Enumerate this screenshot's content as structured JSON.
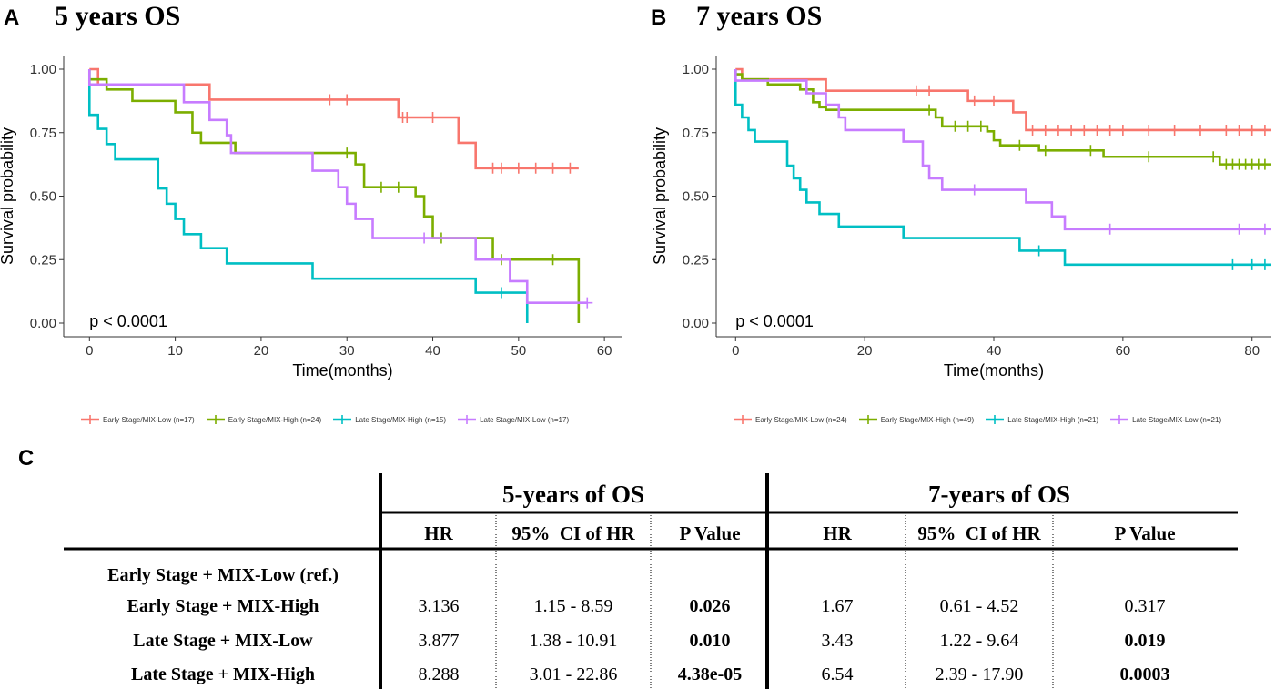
{
  "panels": {
    "a": {
      "letter": "A",
      "title": "5 years OS"
    },
    "b": {
      "letter": "B",
      "title": "7 years OS"
    },
    "c": {
      "letter": "C"
    }
  },
  "colors": {
    "early_low": "#F8766D",
    "early_high": "#7CAE00",
    "late_high": "#00BFC4",
    "late_low": "#C77CFF",
    "axis": "#333333",
    "text": "#000000"
  },
  "chart_data": [
    {
      "type": "line",
      "title": "5 years OS",
      "xlabel": "Time(months)",
      "ylabel": "Survival probability",
      "xlim": [
        -3,
        62
      ],
      "ylim": [
        0,
        1
      ],
      "xticks": [
        0,
        10,
        20,
        30,
        40,
        50,
        60
      ],
      "yticks": [
        "0.00",
        "0.25",
        "0.50",
        "0.75",
        "1.00"
      ],
      "annotation": "p < 0.0001",
      "legend_position": "bottom",
      "series": [
        {
          "name": "Early Stage/MIX-Low (n=17)",
          "color_key": "early_low",
          "steps": [
            [
              0,
              1
            ],
            [
              1,
              0.94
            ],
            [
              14,
              0.88
            ],
            [
              36,
              0.81
            ],
            [
              43,
              0.71
            ],
            [
              45,
              0.61
            ],
            [
              57,
              0.61
            ]
          ],
          "censors": [
            [
              28,
              0.88
            ],
            [
              30,
              0.88
            ],
            [
              36.5,
              0.81
            ],
            [
              37,
              0.81
            ],
            [
              40,
              0.81
            ],
            [
              47,
              0.61
            ],
            [
              48,
              0.61
            ],
            [
              50,
              0.61
            ],
            [
              52,
              0.61
            ],
            [
              54,
              0.61
            ],
            [
              56,
              0.61
            ]
          ]
        },
        {
          "name": "Early Stage/MIX-High (n=24)",
          "color_key": "early_high",
          "steps": [
            [
              0,
              0.96
            ],
            [
              2,
              0.92
            ],
            [
              5,
              0.875
            ],
            [
              10,
              0.83
            ],
            [
              12,
              0.75
            ],
            [
              13,
              0.71
            ],
            [
              17,
              0.67
            ],
            [
              31,
              0.625
            ],
            [
              32,
              0.535
            ],
            [
              38,
              0.5
            ],
            [
              39,
              0.42
            ],
            [
              40,
              0.335
            ],
            [
              47,
              0.25
            ],
            [
              57,
              0.0
            ]
          ],
          "censors": [
            [
              30,
              0.67
            ],
            [
              34,
              0.535
            ],
            [
              36,
              0.535
            ],
            [
              41,
              0.335
            ],
            [
              48,
              0.25
            ],
            [
              54,
              0.25
            ]
          ]
        },
        {
          "name": "Late Stage/MIX-High (n=15)",
          "color_key": "late_high",
          "steps": [
            [
              0,
              0.82
            ],
            [
              1,
              0.765
            ],
            [
              2,
              0.705
            ],
            [
              3,
              0.645
            ],
            [
              8,
              0.53
            ],
            [
              9,
              0.47
            ],
            [
              10,
              0.41
            ],
            [
              11,
              0.35
            ],
            [
              13,
              0.295
            ],
            [
              16,
              0.235
            ],
            [
              26,
              0.175
            ],
            [
              45,
              0.12
            ],
            [
              51,
              0.0
            ]
          ],
          "censors": [
            [
              48,
              0.12
            ]
          ]
        },
        {
          "name": "Late Stage/MIX-Low (n=17)",
          "color_key": "late_low",
          "steps": [
            [
              0,
              0.94
            ],
            [
              11,
              0.87
            ],
            [
              14,
              0.8
            ],
            [
              16,
              0.74
            ],
            [
              16.5,
              0.67
            ],
            [
              26,
              0.6
            ],
            [
              29,
              0.535
            ],
            [
              30,
              0.47
            ],
            [
              31,
              0.41
            ],
            [
              33,
              0.335
            ],
            [
              45,
              0.25
            ],
            [
              49,
              0.165
            ],
            [
              51,
              0.08
            ],
            [
              58,
              0.08
            ]
          ],
          "censors": [
            [
              39,
              0.335
            ],
            [
              58,
              0.08
            ]
          ]
        }
      ]
    },
    {
      "type": "line",
      "title": "7 years OS",
      "xlabel": "Time(months)",
      "ylabel": "Survival probability",
      "xlim": [
        -3,
        83
      ],
      "ylim": [
        0,
        1
      ],
      "xticks": [
        0,
        20,
        40,
        60,
        80
      ],
      "yticks": [
        "0.00",
        "0.25",
        "0.50",
        "0.75",
        "1.00"
      ],
      "annotation": "p < 0.0001",
      "legend_position": "bottom",
      "series": [
        {
          "name": "Early Stage/MIX-Low (n=24)",
          "color_key": "early_low",
          "steps": [
            [
              0,
              1
            ],
            [
              1,
              0.96
            ],
            [
              14,
              0.915
            ],
            [
              36,
              0.875
            ],
            [
              43,
              0.83
            ],
            [
              45,
              0.76
            ],
            [
              83,
              0.76
            ]
          ],
          "censors": [
            [
              37,
              0.875
            ],
            [
              40,
              0.875
            ],
            [
              28,
              0.915
            ],
            [
              30,
              0.915
            ],
            [
              46,
              0.76
            ],
            [
              48,
              0.76
            ],
            [
              50,
              0.76
            ],
            [
              52,
              0.76
            ],
            [
              54,
              0.76
            ],
            [
              56,
              0.76
            ],
            [
              58,
              0.76
            ],
            [
              60,
              0.76
            ],
            [
              64,
              0.76
            ],
            [
              68,
              0.76
            ],
            [
              72,
              0.76
            ],
            [
              76,
              0.76
            ],
            [
              78,
              0.76
            ],
            [
              80,
              0.76
            ],
            [
              82,
              0.76
            ]
          ]
        },
        {
          "name": "Early Stage/MIX-High (n=49)",
          "color_key": "early_high",
          "steps": [
            [
              0,
              0.98
            ],
            [
              1,
              0.96
            ],
            [
              5,
              0.94
            ],
            [
              10,
              0.92
            ],
            [
              12,
              0.87
            ],
            [
              13,
              0.85
            ],
            [
              14,
              0.84
            ],
            [
              31,
              0.81
            ],
            [
              32,
              0.775
            ],
            [
              39,
              0.755
            ],
            [
              40,
              0.72
            ],
            [
              41,
              0.7
            ],
            [
              47,
              0.68
            ],
            [
              57,
              0.655
            ],
            [
              75,
              0.625
            ],
            [
              83,
              0.625
            ]
          ],
          "censors": [
            [
              30,
              0.84
            ],
            [
              34,
              0.775
            ],
            [
              36,
              0.775
            ],
            [
              38,
              0.775
            ],
            [
              44,
              0.7
            ],
            [
              48,
              0.68
            ],
            [
              55,
              0.68
            ],
            [
              64,
              0.655
            ],
            [
              74,
              0.655
            ],
            [
              76,
              0.625
            ],
            [
              77,
              0.625
            ],
            [
              78,
              0.625
            ],
            [
              79,
              0.625
            ],
            [
              80,
              0.625
            ],
            [
              81,
              0.625
            ],
            [
              82,
              0.625
            ]
          ]
        },
        {
          "name": "Late Stage/MIX-High (n=21)",
          "color_key": "late_high",
          "steps": [
            [
              0,
              0.86
            ],
            [
              1,
              0.81
            ],
            [
              2,
              0.76
            ],
            [
              3,
              0.715
            ],
            [
              8,
              0.62
            ],
            [
              9,
              0.57
            ],
            [
              10,
              0.525
            ],
            [
              11,
              0.475
            ],
            [
              13,
              0.43
            ],
            [
              16,
              0.38
            ],
            [
              26,
              0.335
            ],
            [
              44,
              0.285
            ],
            [
              51,
              0.23
            ],
            [
              83,
              0.23
            ]
          ],
          "censors": [
            [
              47,
              0.285
            ],
            [
              77,
              0.23
            ],
            [
              80,
              0.23
            ],
            [
              82,
              0.23
            ]
          ]
        },
        {
          "name": "Late Stage/MIX-Low (n=21)",
          "color_key": "late_low",
          "steps": [
            [
              0,
              0.955
            ],
            [
              11,
              0.905
            ],
            [
              14,
              0.86
            ],
            [
              16,
              0.81
            ],
            [
              17,
              0.76
            ],
            [
              26,
              0.715
            ],
            [
              29,
              0.62
            ],
            [
              30,
              0.57
            ],
            [
              32,
              0.525
            ],
            [
              45,
              0.475
            ],
            [
              49,
              0.42
            ],
            [
              51,
              0.37
            ],
            [
              83,
              0.37
            ]
          ],
          "censors": [
            [
              37,
              0.525
            ],
            [
              58,
              0.37
            ],
            [
              78,
              0.37
            ],
            [
              82,
              0.37
            ]
          ]
        }
      ]
    }
  ],
  "table": {
    "group_5y": "5-years of OS",
    "group_7y": "7-years of OS",
    "col_hr": "HR",
    "col_ci": "95%  CI of HR",
    "col_p": "P Value",
    "rows": [
      {
        "label": "Early Stage + MIX-Low (ref.)",
        "hr5": "",
        "ci5": "",
        "p5": "",
        "hr7": "",
        "ci7": "",
        "p7": "",
        "p5_bold": false,
        "p7_bold": false
      },
      {
        "label": "Early Stage + MIX-High",
        "hr5": "3.136",
        "ci5": "1.15 - 8.59",
        "p5": "0.026",
        "hr7": "1.67",
        "ci7": "0.61 - 4.52",
        "p7": "0.317",
        "p5_bold": true,
        "p7_bold": false
      },
      {
        "label": "Late Stage + MIX-Low",
        "hr5": "3.877",
        "ci5": "1.38 - 10.91",
        "p5": "0.010",
        "hr7": "3.43",
        "ci7": "1.22 - 9.64",
        "p7": "0.019",
        "p5_bold": true,
        "p7_bold": true
      },
      {
        "label": "Late Stage + MIX-High",
        "hr5": "8.288",
        "ci5": "3.01 - 22.86",
        "p5": "4.38e-05",
        "hr7": "6.54",
        "ci7": "2.39 - 17.90",
        "p7": "0.0003",
        "p5_bold": true,
        "p7_bold": true
      }
    ]
  }
}
